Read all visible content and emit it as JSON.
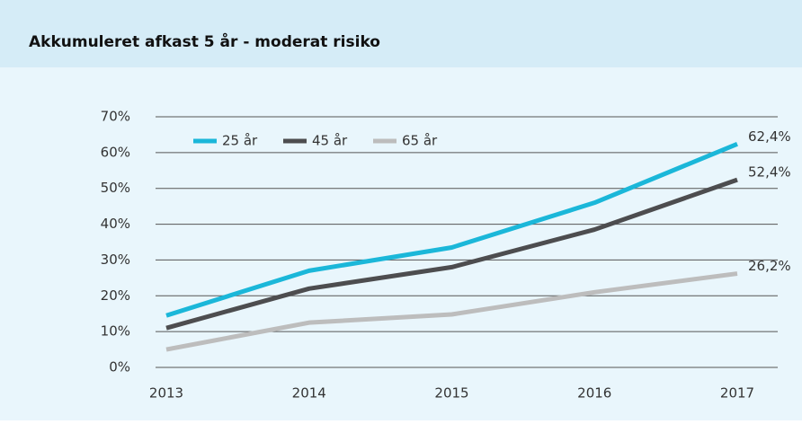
{
  "chart_data": {
    "type": "line",
    "title": "Akkumuleret afkast 5 år - moderat risiko",
    "categories": [
      "2013",
      "2014",
      "2015",
      "2016",
      "2017"
    ],
    "series": [
      {
        "name": "25 år",
        "color": "#1bb7d9",
        "values": [
          14.5,
          27,
          33.5,
          46,
          62.4
        ],
        "value_labels": [
          null,
          null,
          null,
          null,
          "62,4%"
        ]
      },
      {
        "name": "45 år",
        "color": "#4d4d4f",
        "values": [
          11,
          22,
          28,
          38.5,
          52.4
        ],
        "value_labels": [
          null,
          null,
          null,
          null,
          "52,4%"
        ]
      },
      {
        "name": "65 år",
        "color": "#bdbdbd",
        "values": [
          5,
          12.5,
          14.8,
          21,
          26.2
        ],
        "value_labels": [
          null,
          null,
          null,
          null,
          "26,2%"
        ]
      }
    ],
    "ylim": [
      0,
      70
    ],
    "yticks": [
      {
        "value": 0,
        "label": "0%"
      },
      {
        "value": 10,
        "label": "10%"
      },
      {
        "value": 20,
        "label": "20%"
      },
      {
        "value": 30,
        "label": "30%"
      },
      {
        "value": 40,
        "label": "40%"
      },
      {
        "value": 50,
        "label": "50%"
      },
      {
        "value": 60,
        "label": "60%"
      },
      {
        "value": 70,
        "label": "70%"
      }
    ],
    "grid": true,
    "legend": "top-left"
  }
}
